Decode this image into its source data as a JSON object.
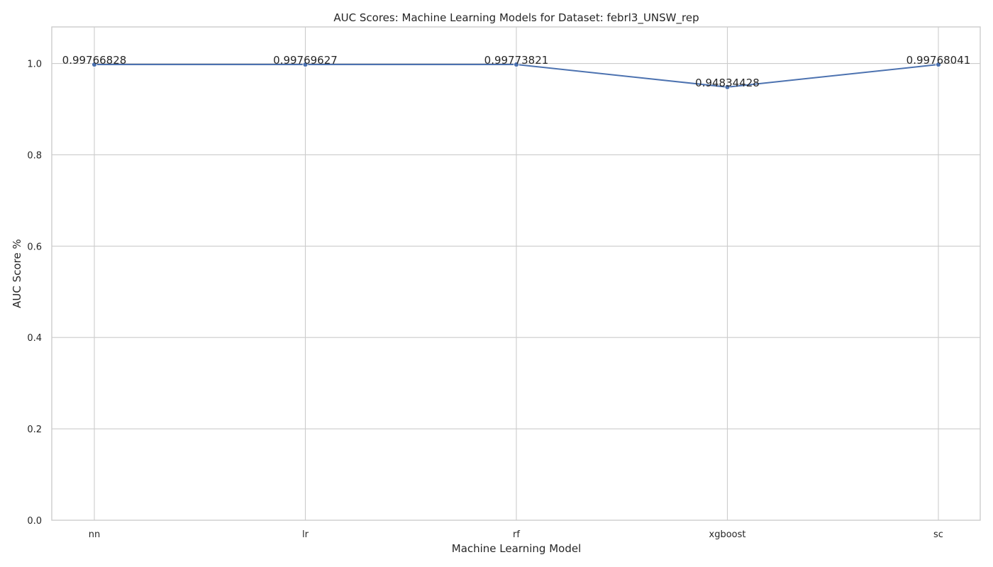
{
  "chart_data": {
    "type": "line",
    "title": "AUC Scores: Machine Learning Models for Dataset: febrl3_UNSW_rep",
    "xlabel": "Machine Learning Model",
    "ylabel": "AUC Score %",
    "categories": [
      "nn",
      "lr",
      "rf",
      "xgboost",
      "sc"
    ],
    "series": [
      {
        "values": [
          0.99766828,
          0.99769627,
          0.99773821,
          0.94834428,
          0.99768041
        ],
        "labels": [
          "0.99766828",
          "0.99769627",
          "0.99773821",
          "0.94834428",
          "0.99768041"
        ],
        "color": "#4c72b0",
        "marker": "circle"
      }
    ],
    "ylim": [
      0.0,
      1.08
    ],
    "yticks": [
      0.0,
      0.2,
      0.4,
      0.6,
      0.8,
      1.0
    ],
    "ytick_labels": [
      "0.0",
      "0.2",
      "0.4",
      "0.6",
      "0.8",
      "1.0"
    ],
    "grid": true,
    "legend": "none",
    "colors": {
      "grid": "#cccccc",
      "line": "#4c72b0",
      "background": "#ffffff"
    }
  }
}
